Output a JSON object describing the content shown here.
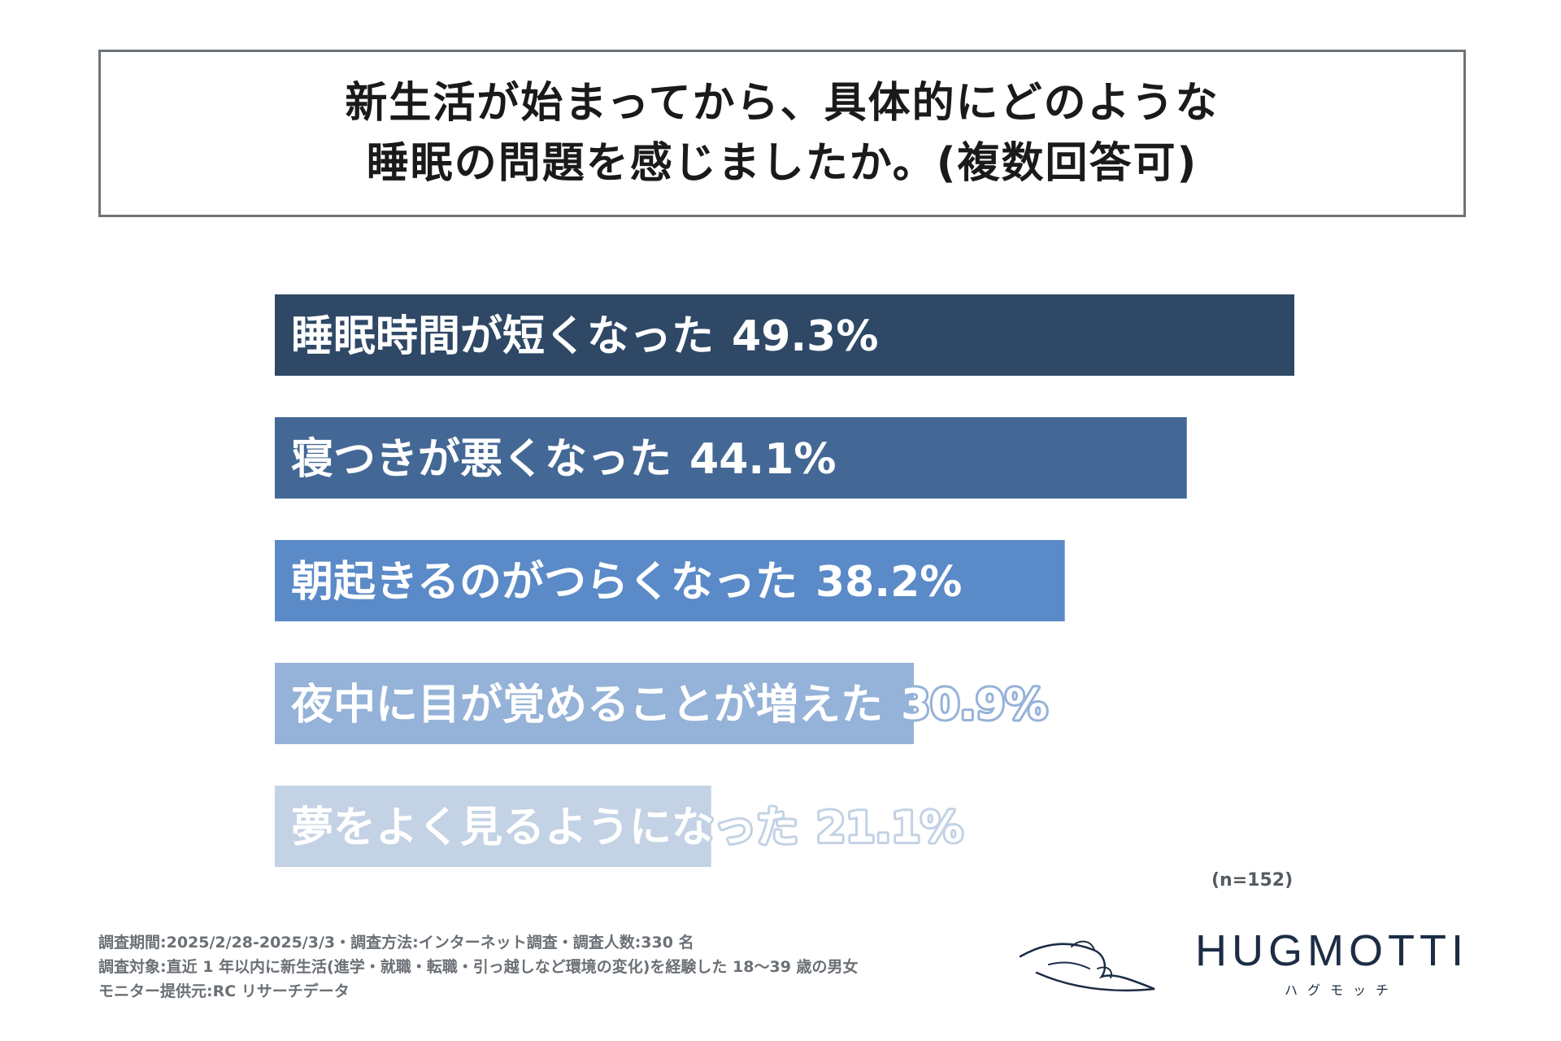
{
  "title": {
    "line1": "新生活が始まってから、具体的にどのような",
    "line2": "睡眠の問題を感じましたか。(複数回答可)"
  },
  "chart_data": {
    "type": "bar",
    "orientation": "horizontal",
    "categories": [
      "睡眠時間が短くなった",
      "寝つきが悪くなった",
      "朝起きるのがつらくなった",
      "夜中に目が覚めることが増えた",
      "夢をよく見るようになった"
    ],
    "values": [
      49.3,
      44.1,
      38.2,
      30.9,
      21.1
    ],
    "value_labels": [
      "49.3%",
      "44.1%",
      "38.2%",
      "30.9%",
      "21.1%"
    ],
    "colors": [
      "#2e4866",
      "#446895",
      "#5a8ac7",
      "#95b2d8",
      "#c3d2e4"
    ],
    "label_colors": [
      "#ffffff",
      "#ffffff",
      "#ffffff",
      "#ffffff",
      "#ffffff"
    ],
    "label_outline": [
      false,
      false,
      false,
      true,
      true
    ],
    "xlim": [
      0,
      49.3
    ]
  },
  "sample_size": "(n=152)",
  "footnotes": [
    "調査期間:2025/2/28-2025/3/3・調査方法:インターネット調査・調査人数:330 名",
    "調査対象:直近 1 年以内に新生活(進学・就職・転職・引っ越しなど環境の変化)を経験した 18〜39 歳の男女",
    "モニター提供元:RC リサーチデータ"
  ],
  "brand": {
    "name": "HUGMOTTI",
    "kana": "ハグモッチ"
  }
}
